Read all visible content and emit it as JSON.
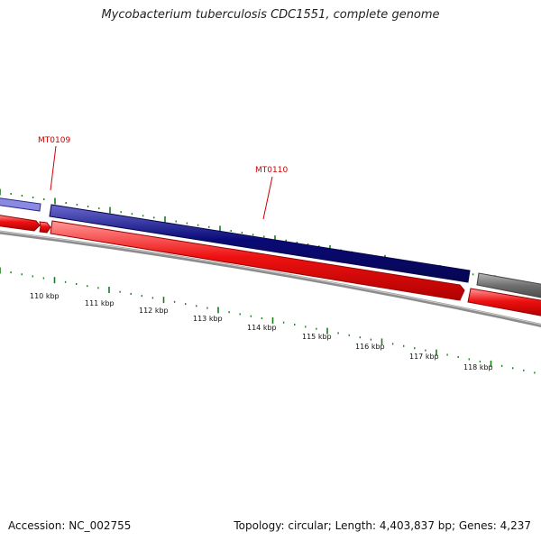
{
  "title": "Mycobacterium tuberculosis CDC1551, complete genome",
  "genes": [
    {
      "label": "MT0109"
    },
    {
      "label": "MT0110"
    }
  ],
  "scale_labels": [
    "110 kbp",
    "111 kbp",
    "112 kbp",
    "113 kbp",
    "114 kbp",
    "115 kbp",
    "116 kbp",
    "117 kbp",
    "118 kbp"
  ],
  "footer": {
    "accession": "Accession: NC_002755",
    "stats": "Topology: circular; Length: 4,403,837 bp; Genes: 4,237"
  },
  "colors": {
    "forward_cds": "#0a0a78",
    "reverse_cds": "#ee1111",
    "gray_feature": "#7a7a7a",
    "backbone": "#8c8c8c",
    "tick": "#1e7a1e",
    "gene_label": "#cc0000"
  }
}
